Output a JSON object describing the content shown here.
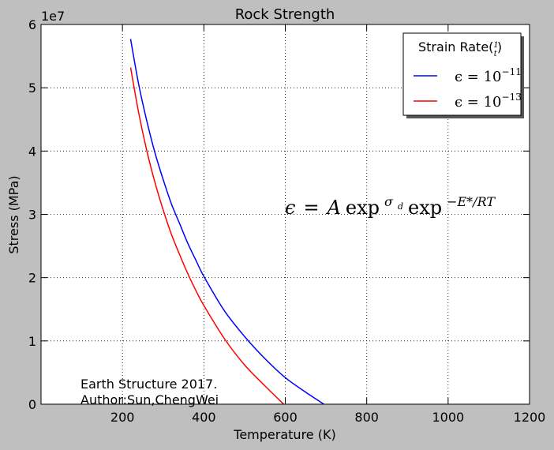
{
  "chart_data": {
    "type": "line",
    "title": "Rock Strength",
    "xlabel": "Temperature (K)",
    "ylabel": "Stress (MPa)",
    "y_offset_label": "1e7",
    "xlim": [
      0,
      1200
    ],
    "ylim": [
      0,
      6
    ],
    "x_ticks": [
      "200",
      "400",
      "600",
      "800",
      "1000",
      "1200"
    ],
    "y_ticks": [
      "0",
      "1",
      "2",
      "3",
      "4",
      "5",
      "6"
    ],
    "grid": true,
    "legend": {
      "title": "Strain Rate",
      "title_frac_num": "1",
      "title_frac_den": "t",
      "placement": "top-right"
    },
    "series": [
      {
        "name": "ε = 10^-11",
        "name_base": "ϵ = 10",
        "name_exp": "−11",
        "color": "#0000ff",
        "x": [
          220,
          240,
          260,
          280,
          300,
          320,
          340,
          360,
          380,
          400,
          450,
          500,
          550,
          600,
          650,
          695
        ],
        "y": [
          5.77,
          5.05,
          4.47,
          3.97,
          3.55,
          3.17,
          2.86,
          2.55,
          2.28,
          2.02,
          1.48,
          1.07,
          0.72,
          0.42,
          0.19,
          0.0
        ]
      },
      {
        "name": "ε = 10^-13",
        "name_base": "ϵ = 10",
        "name_exp": "−13",
        "color": "#ff0000",
        "x": [
          220,
          240,
          260,
          280,
          300,
          320,
          340,
          360,
          380,
          400,
          450,
          500,
          550,
          596
        ],
        "y": [
          5.32,
          4.6,
          4.0,
          3.5,
          3.07,
          2.69,
          2.37,
          2.07,
          1.8,
          1.56,
          1.04,
          0.62,
          0.29,
          0.0
        ]
      }
    ],
    "equation": {
      "lhs": "ϵ",
      "eq": "=",
      "a": "A",
      "exp1": "exp",
      "sup1": "σ",
      "sup1_sub": "d",
      "exp2": "exp",
      "sup2": "−E*/RT"
    },
    "annotation": [
      "Earth Structure 2017.",
      "Author:Sun,ChengWei"
    ]
  }
}
